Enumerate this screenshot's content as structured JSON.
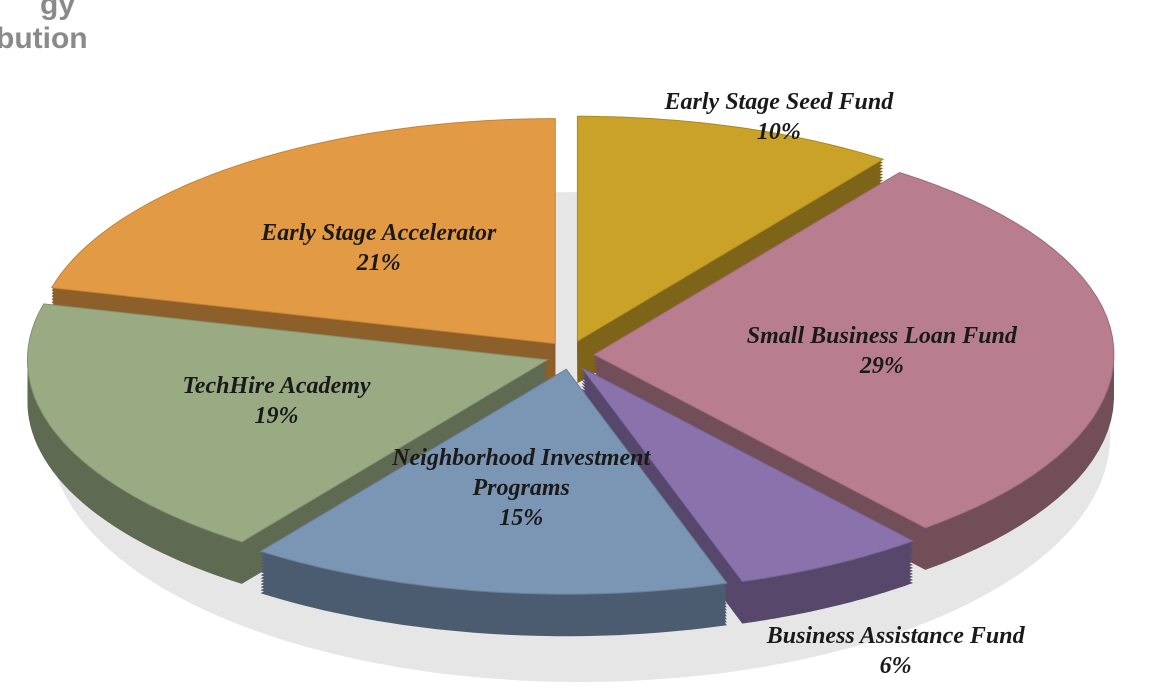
{
  "chart_data": {
    "type": "pie",
    "title_lines": [
      "gy",
      "bution"
    ],
    "categories": [
      "Early Stage Seed Fund",
      "Small Business Loan Fund",
      "Business Assistance Fund",
      "Neighborhood Investment Programs",
      "TechHire Academy",
      "Early Stage Accelerator"
    ],
    "values": [
      10,
      29,
      6,
      15,
      19,
      21
    ],
    "value_labels": [
      "10%",
      "29%",
      "6%",
      "15%",
      "19%",
      "21%"
    ],
    "colors": [
      "#c9a227",
      "#b87d8f",
      "#8a72ad",
      "#7b95b5",
      "#9aab84",
      "#e39a45"
    ]
  }
}
